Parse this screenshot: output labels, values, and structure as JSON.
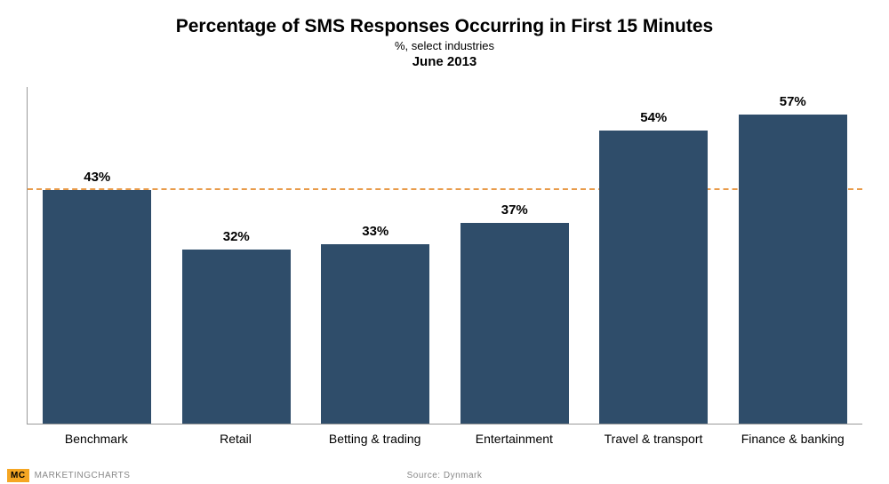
{
  "chart": {
    "type": "bar",
    "title": "Percentage of SMS Responses Occurring in First 15 Minutes",
    "title_fontsize": 21,
    "subtitle": "%, select industries",
    "subtitle_fontsize": 13,
    "date": "June 2013",
    "date_fontsize": 15,
    "categories": [
      "Benchmark",
      "Retail",
      "Betting & trading",
      "Entertainment",
      "Travel & transport",
      "Finance & banking"
    ],
    "values": [
      43,
      32,
      33,
      37,
      54,
      57
    ],
    "value_labels": [
      "43%",
      "32%",
      "33%",
      "37%",
      "54%",
      "57%"
    ],
    "bar_color": "#2f4d6a",
    "benchmark_value": 43,
    "benchmark_line_color": "#e89b4a",
    "ylim_max": 62,
    "label_fontsize": 15,
    "xlabel_fontsize": 14,
    "background_color": "#ffffff",
    "axis_color": "#999999",
    "bar_width_pct": 78
  },
  "footer": {
    "badge": "MC",
    "brand": "MARKETINGCHARTS",
    "source": "Source: Dynmark"
  }
}
